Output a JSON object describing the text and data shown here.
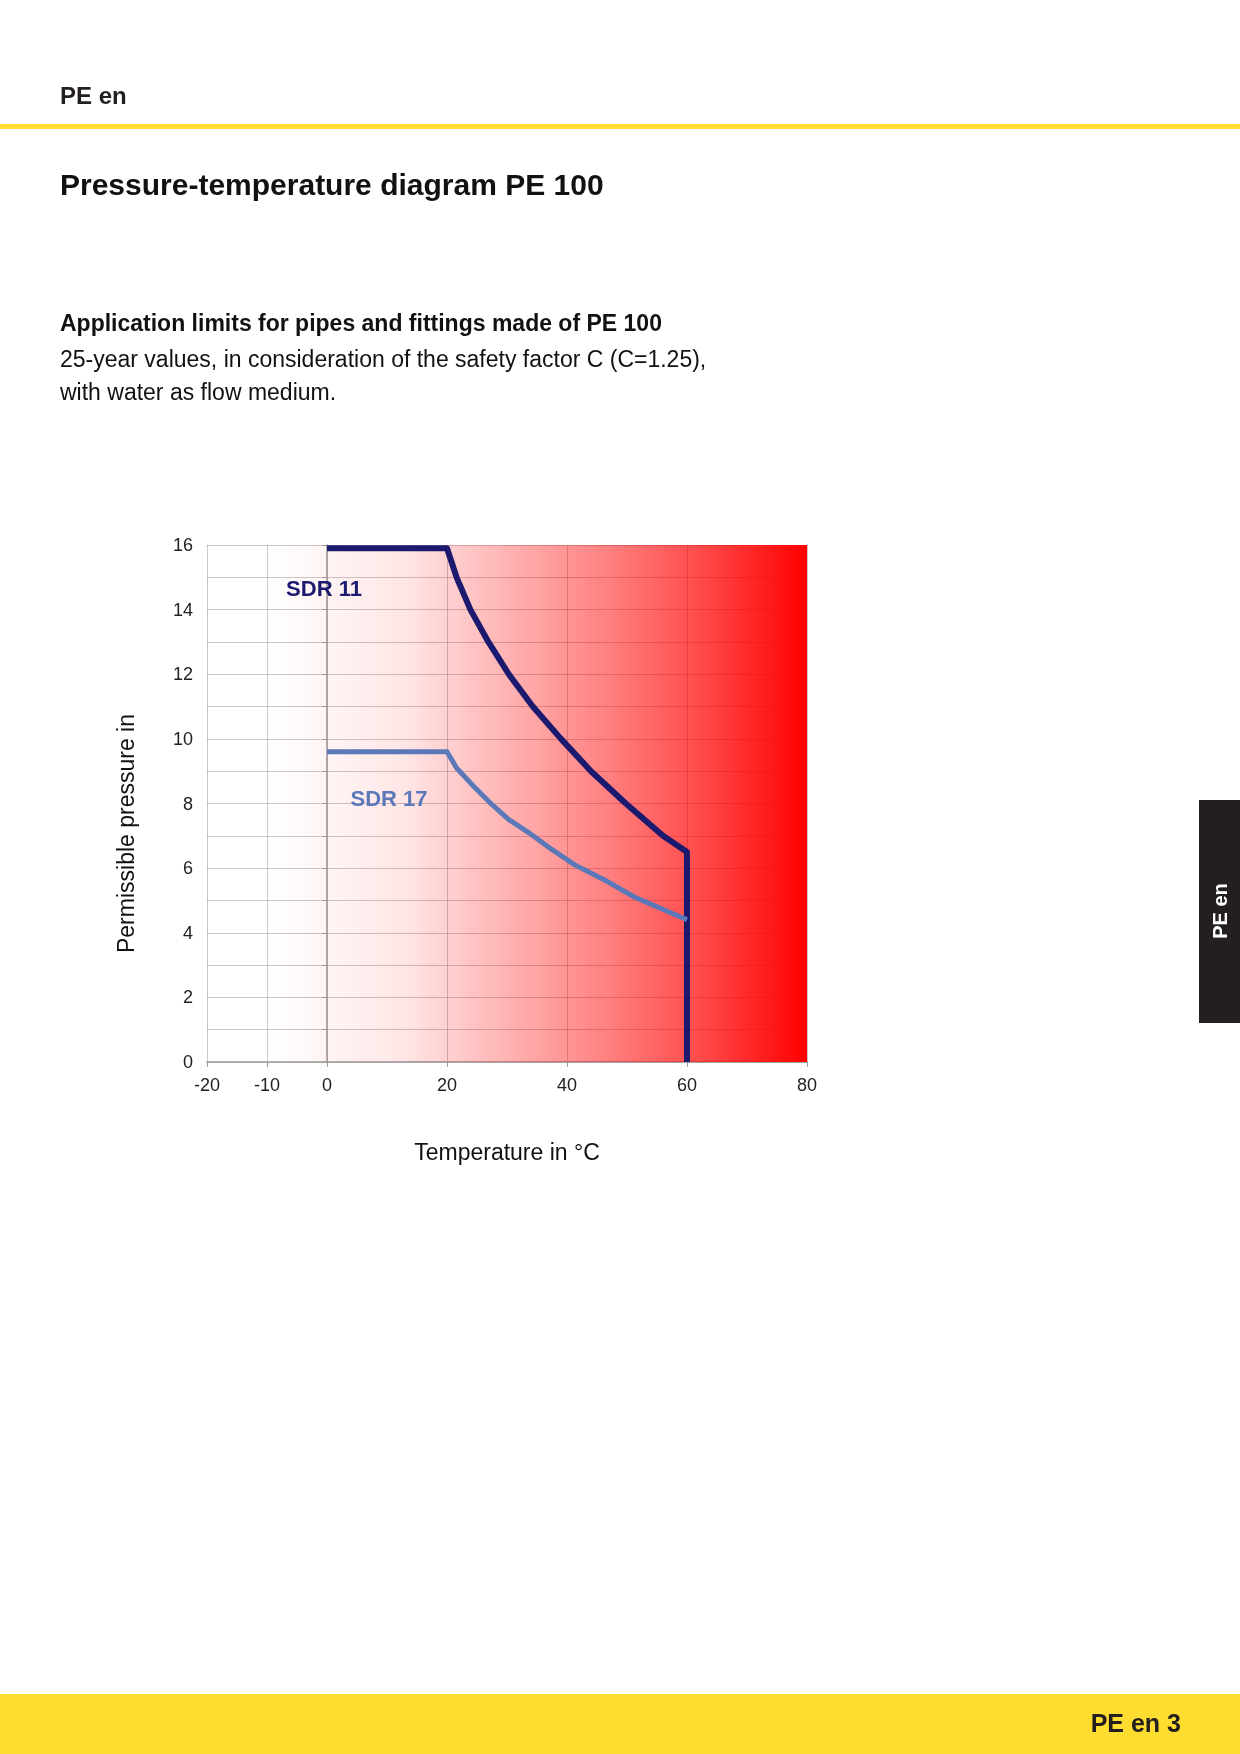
{
  "chart_data": {
    "type": "line",
    "title": "Pressure-temperature diagram PE 100",
    "subtitle": "Application limits for pipes and fittings made of PE 100",
    "annotations": [
      "PE en",
      "25-year values, in consideration of the safety factor C (C=1.25), with water as flow medium.",
      "PE en",
      "PE en 3"
    ],
    "xlabel": "Temperature in °C",
    "ylabel": "Permissible pressure in",
    "xlim": [
      -20,
      80
    ],
    "xticks": [
      -20,
      -10,
      0,
      20,
      40,
      60,
      80
    ],
    "ylim": [
      0,
      16
    ],
    "yticks": [
      0,
      {
        "value": 1,
        "label": null
      },
      2,
      {
        "value": 3,
        "label": null
      },
      4,
      {
        "value": 5,
        "label": null
      },
      6,
      {
        "value": 7,
        "label": null
      },
      8,
      {
        "value": 9,
        "label": null
      },
      10,
      {
        "value": 11,
        "label": null
      },
      12,
      {
        "value": 13,
        "label": null
      },
      14,
      {
        "value": 15,
        "label": null
      },
      16
    ],
    "grid": true,
    "marker": "none",
    "line_style": "solid",
    "bands": [
      {
        "axis": "x",
        "from": -20,
        "to": 80,
        "color": "#ff0000"
      }
    ],
    "series": [
      {
        "name": "SDR 11",
        "color": "#1c1a6e",
        "x": [
          0,
          20,
          21.6,
          23.9,
          26.9,
          30.3,
          34.3,
          39,
          44,
          49.8,
          56,
          60,
          60
        ],
        "values": [
          15.9,
          15.9,
          15,
          14,
          13,
          12,
          11,
          10,
          9,
          8,
          7,
          6.5,
          0
        ]
      },
      {
        "name": "SDR 17",
        "color": "#5b78b8",
        "x": [
          0,
          20,
          21.6,
          24.6,
          27.3,
          30.3,
          33.6,
          37.3,
          41.3,
          46.6,
          51.3,
          60
        ],
        "values": [
          9.6,
          9.6,
          9.1,
          8.5,
          8,
          7.5,
          7.1,
          6.6,
          6.1,
          5.6,
          5.1,
          4.4
        ]
      }
    ]
  }
}
